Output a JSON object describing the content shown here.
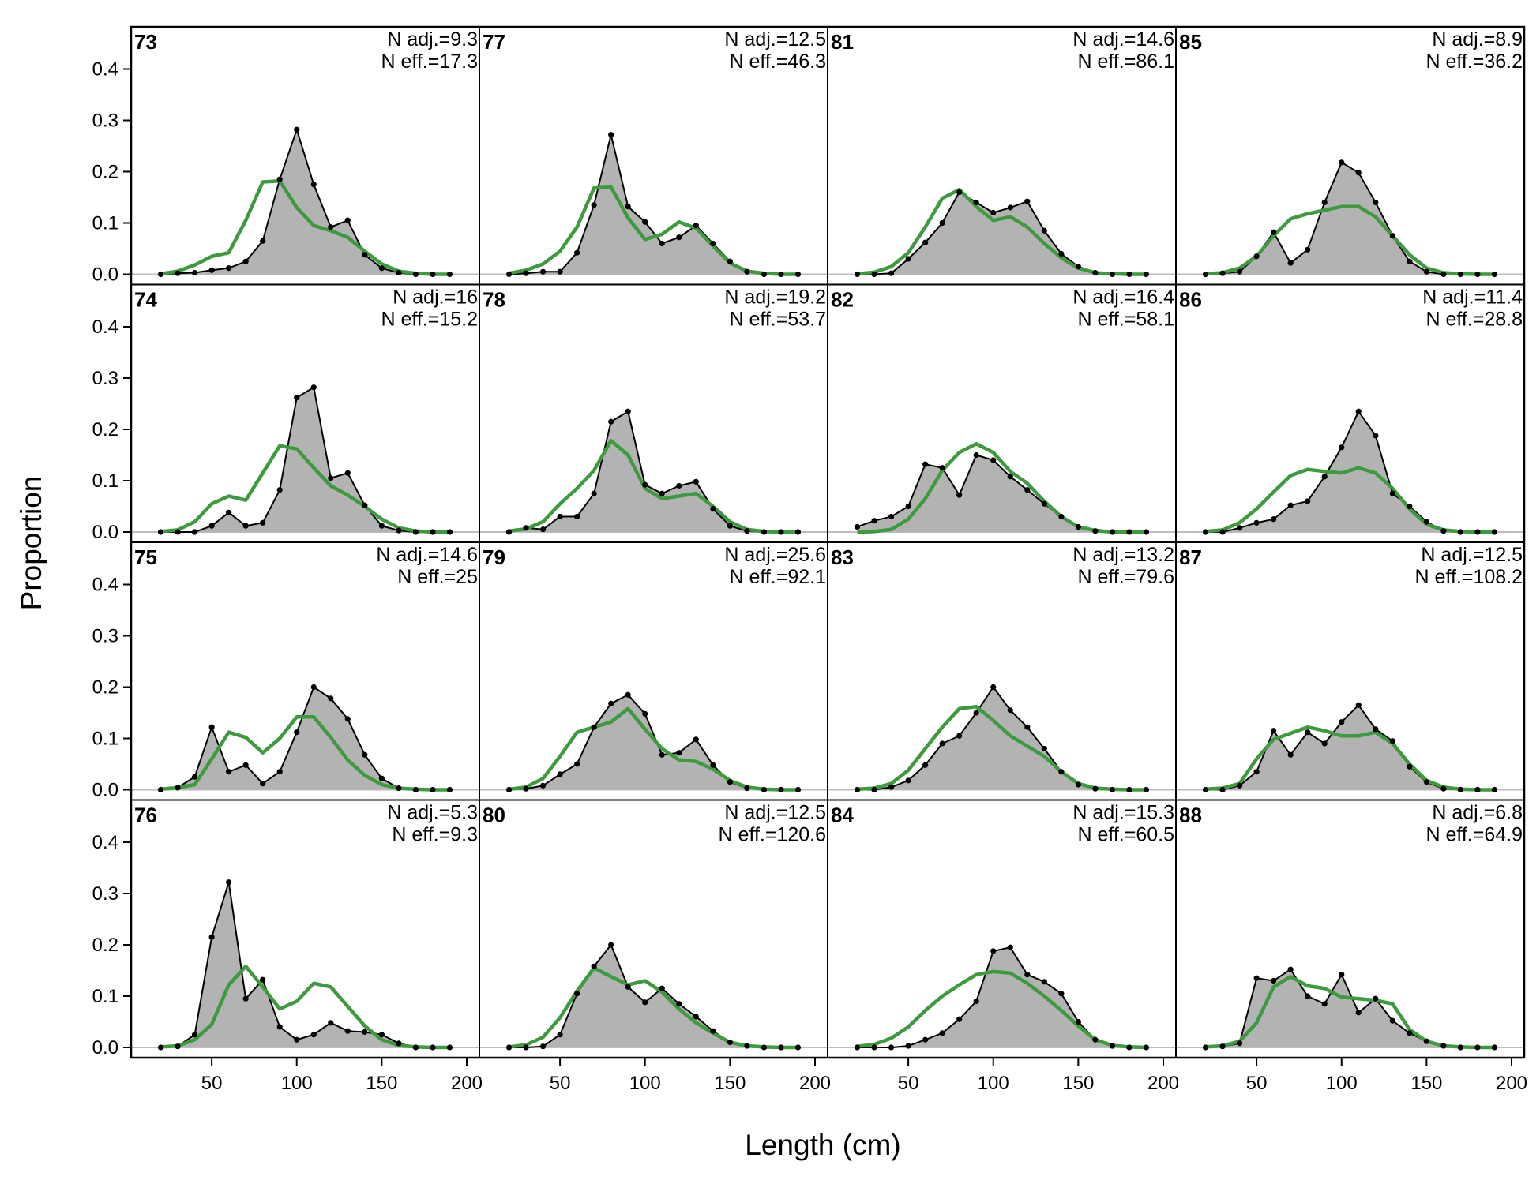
{
  "chart_data": {
    "type": "area",
    "xlabel": "Length (cm)",
    "ylabel": "Proportion",
    "xlim": [
      10,
      200
    ],
    "ylim": [
      0,
      0.47
    ],
    "x_ticks": [
      50,
      100,
      150,
      200
    ],
    "y_ticks": [
      "0.0",
      "0.1",
      "0.2",
      "0.3",
      "0.4"
    ],
    "layout": "4 rows x 4 columns, filled column-wise",
    "colors": {
      "observed_fill": "#b3b3b3",
      "observed_line": "#000000",
      "expected_line": "#3e9a3e",
      "zero_line": "#bdbdbd"
    },
    "length_bins": [
      20,
      30,
      40,
      50,
      60,
      70,
      80,
      90,
      100,
      110,
      120,
      130,
      140,
      150,
      160,
      170,
      180,
      190
    ],
    "panels": [
      {
        "label": "73",
        "n_adj": "N adj.=9.3",
        "n_eff": "N eff.=17.3",
        "observed": [
          0,
          0.002,
          0.003,
          0.008,
          0.012,
          0.025,
          0.065,
          0.185,
          0.282,
          0.175,
          0.092,
          0.105,
          0.038,
          0.012,
          0.003,
          0,
          0,
          0
        ],
        "expected": [
          0.001,
          0.006,
          0.018,
          0.035,
          0.042,
          0.105,
          0.18,
          0.182,
          0.13,
          0.095,
          0.085,
          0.072,
          0.045,
          0.02,
          0.006,
          0.002,
          0,
          0
        ]
      },
      {
        "label": "74",
        "n_adj": "N adj.=16",
        "n_eff": "N eff.=15.2",
        "observed": [
          0,
          0,
          0,
          0.012,
          0.038,
          0.012,
          0.018,
          0.082,
          0.262,
          0.282,
          0.105,
          0.115,
          0.052,
          0.012,
          0.003,
          0,
          0,
          0
        ],
        "expected": [
          0.001,
          0.004,
          0.02,
          0.055,
          0.07,
          0.062,
          0.115,
          0.168,
          0.162,
          0.125,
          0.09,
          0.072,
          0.05,
          0.025,
          0.008,
          0.002,
          0,
          0
        ]
      },
      {
        "label": "75",
        "n_adj": "N adj.=14.6",
        "n_eff": "N eff.=25",
        "observed": [
          0,
          0.004,
          0.025,
          0.122,
          0.035,
          0.048,
          0.012,
          0.035,
          0.112,
          0.2,
          0.178,
          0.138,
          0.068,
          0.022,
          0.003,
          0,
          0,
          0
        ],
        "expected": [
          0.001,
          0.004,
          0.01,
          0.06,
          0.112,
          0.102,
          0.072,
          0.1,
          0.142,
          0.142,
          0.102,
          0.058,
          0.028,
          0.01,
          0.003,
          0.001,
          0,
          0
        ]
      },
      {
        "label": "76",
        "n_adj": "N adj.=5.3",
        "n_eff": "N eff.=9.3",
        "observed": [
          0,
          0.002,
          0.025,
          0.215,
          0.322,
          0.095,
          0.132,
          0.04,
          0.015,
          0.025,
          0.048,
          0.032,
          0.03,
          0.025,
          0.008,
          0,
          0,
          0
        ],
        "expected": [
          0.001,
          0.003,
          0.015,
          0.045,
          0.122,
          0.158,
          0.118,
          0.075,
          0.09,
          0.125,
          0.118,
          0.08,
          0.042,
          0.015,
          0.004,
          0.001,
          0,
          0
        ]
      },
      {
        "label": "77",
        "n_adj": "N adj.=12.5",
        "n_eff": "N eff.=46.3",
        "observed": [
          0,
          0.002,
          0.005,
          0.005,
          0.042,
          0.135,
          0.272,
          0.132,
          0.102,
          0.06,
          0.072,
          0.095,
          0.06,
          0.025,
          0.005,
          0,
          0,
          0
        ],
        "expected": [
          0.002,
          0.008,
          0.02,
          0.045,
          0.092,
          0.168,
          0.17,
          0.11,
          0.068,
          0.078,
          0.102,
          0.09,
          0.055,
          0.022,
          0.006,
          0.002,
          0,
          0
        ]
      },
      {
        "label": "78",
        "n_adj": "N adj.=19.2",
        "n_eff": "N eff.=53.7",
        "observed": [
          0,
          0.008,
          0.005,
          0.03,
          0.03,
          0.075,
          0.215,
          0.235,
          0.092,
          0.075,
          0.09,
          0.098,
          0.045,
          0.012,
          0.002,
          0,
          0,
          0
        ],
        "expected": [
          0.002,
          0.006,
          0.02,
          0.055,
          0.085,
          0.12,
          0.178,
          0.15,
          0.085,
          0.065,
          0.07,
          0.075,
          0.05,
          0.02,
          0.005,
          0.001,
          0,
          0
        ]
      },
      {
        "label": "79",
        "n_adj": "N adj.=25.6",
        "n_eff": "N eff.=92.1",
        "observed": [
          0,
          0.002,
          0.008,
          0.03,
          0.05,
          0.122,
          0.168,
          0.185,
          0.148,
          0.068,
          0.072,
          0.098,
          0.048,
          0.015,
          0.003,
          0,
          0,
          0
        ],
        "expected": [
          0.001,
          0.005,
          0.022,
          0.065,
          0.112,
          0.122,
          0.132,
          0.158,
          0.118,
          0.08,
          0.058,
          0.055,
          0.04,
          0.018,
          0.005,
          0.001,
          0,
          0
        ]
      },
      {
        "label": "80",
        "n_adj": "N adj.=12.5",
        "n_eff": "N eff.=120.6",
        "observed": [
          0,
          0,
          0.002,
          0.025,
          0.105,
          0.158,
          0.2,
          0.118,
          0.088,
          0.115,
          0.085,
          0.06,
          0.032,
          0.01,
          0.003,
          0,
          0,
          0
        ],
        "expected": [
          0.001,
          0.005,
          0.02,
          0.058,
          0.11,
          0.155,
          0.138,
          0.122,
          0.13,
          0.108,
          0.075,
          0.048,
          0.028,
          0.01,
          0.003,
          0.001,
          0,
          0
        ]
      },
      {
        "label": "81",
        "n_adj": "N adj.=14.6",
        "n_eff": "N eff.=86.1",
        "observed": [
          0,
          0,
          0.002,
          0.03,
          0.062,
          0.1,
          0.16,
          0.14,
          0.12,
          0.13,
          0.142,
          0.085,
          0.04,
          0.015,
          0.003,
          0,
          0,
          0
        ],
        "expected": [
          0.001,
          0.004,
          0.015,
          0.042,
          0.092,
          0.148,
          0.165,
          0.132,
          0.105,
          0.112,
          0.092,
          0.06,
          0.032,
          0.012,
          0.003,
          0.001,
          0,
          0
        ]
      },
      {
        "label": "82",
        "n_adj": "N adj.=16.4",
        "n_eff": "N eff.=58.1",
        "observed": [
          0.01,
          0.022,
          0.03,
          0.05,
          0.132,
          0.125,
          0.072,
          0.15,
          0.14,
          0.108,
          0.082,
          0.055,
          0.03,
          0.01,
          0.002,
          0,
          0,
          0
        ],
        "expected": [
          0,
          0.001,
          0.005,
          0.025,
          0.065,
          0.12,
          0.155,
          0.172,
          0.155,
          0.118,
          0.095,
          0.06,
          0.03,
          0.01,
          0.003,
          0,
          0,
          0
        ]
      },
      {
        "label": "83",
        "n_adj": "N adj.=13.2",
        "n_eff": "N eff.=79.6",
        "observed": [
          0,
          0,
          0.005,
          0.018,
          0.048,
          0.09,
          0.105,
          0.15,
          0.2,
          0.155,
          0.122,
          0.08,
          0.035,
          0.01,
          0.002,
          0,
          0,
          0
        ],
        "expected": [
          0.001,
          0.003,
          0.012,
          0.038,
          0.08,
          0.122,
          0.158,
          0.162,
          0.135,
          0.105,
          0.085,
          0.065,
          0.035,
          0.012,
          0.003,
          0.001,
          0,
          0
        ]
      },
      {
        "label": "84",
        "n_adj": "N adj.=15.3",
        "n_eff": "N eff.=60.5",
        "observed": [
          0,
          0,
          0,
          0.003,
          0.015,
          0.028,
          0.055,
          0.09,
          0.188,
          0.195,
          0.142,
          0.128,
          0.105,
          0.05,
          0.015,
          0.003,
          0,
          0
        ],
        "expected": [
          0.002,
          0.006,
          0.018,
          0.04,
          0.072,
          0.1,
          0.122,
          0.142,
          0.148,
          0.145,
          0.125,
          0.1,
          0.072,
          0.042,
          0.015,
          0.004,
          0.001,
          0
        ]
      },
      {
        "label": "85",
        "n_adj": "N adj.=8.9",
        "n_eff": "N eff.=36.2",
        "observed": [
          0,
          0.002,
          0.005,
          0.035,
          0.082,
          0.022,
          0.048,
          0.14,
          0.218,
          0.198,
          0.14,
          0.075,
          0.025,
          0.005,
          0,
          0,
          0,
          0
        ],
        "expected": [
          0.001,
          0.003,
          0.012,
          0.035,
          0.075,
          0.108,
          0.118,
          0.125,
          0.132,
          0.132,
          0.112,
          0.075,
          0.038,
          0.012,
          0.003,
          0.001,
          0,
          0
        ]
      },
      {
        "label": "86",
        "n_adj": "N adj.=11.4",
        "n_eff": "N eff.=28.8",
        "observed": [
          0,
          0,
          0.008,
          0.018,
          0.025,
          0.052,
          0.06,
          0.108,
          0.165,
          0.235,
          0.188,
          0.075,
          0.05,
          0.02,
          0.002,
          0,
          0,
          0
        ],
        "expected": [
          0.001,
          0.004,
          0.018,
          0.045,
          0.078,
          0.11,
          0.122,
          0.118,
          0.115,
          0.125,
          0.115,
          0.085,
          0.045,
          0.015,
          0.004,
          0.001,
          0,
          0
        ]
      },
      {
        "label": "87",
        "n_adj": "N adj.=12.5",
        "n_eff": "N eff.=108.2",
        "observed": [
          0,
          0,
          0.008,
          0.035,
          0.115,
          0.068,
          0.112,
          0.09,
          0.132,
          0.165,
          0.118,
          0.095,
          0.045,
          0.015,
          0.002,
          0,
          0,
          0
        ],
        "expected": [
          0.001,
          0.003,
          0.012,
          0.06,
          0.098,
          0.11,
          0.122,
          0.115,
          0.105,
          0.105,
          0.112,
          0.09,
          0.05,
          0.018,
          0.005,
          0.001,
          0,
          0
        ]
      },
      {
        "label": "88",
        "n_adj": "N adj.=6.8",
        "n_eff": "N eff.=64.9",
        "observed": [
          0,
          0.002,
          0.008,
          0.135,
          0.13,
          0.152,
          0.1,
          0.085,
          0.142,
          0.068,
          0.095,
          0.052,
          0.028,
          0.012,
          0.003,
          0,
          0,
          0
        ],
        "expected": [
          0.001,
          0.003,
          0.012,
          0.048,
          0.118,
          0.138,
          0.12,
          0.115,
          0.098,
          0.095,
          0.092,
          0.085,
          0.035,
          0.012,
          0.003,
          0.001,
          0,
          0
        ]
      }
    ]
  }
}
